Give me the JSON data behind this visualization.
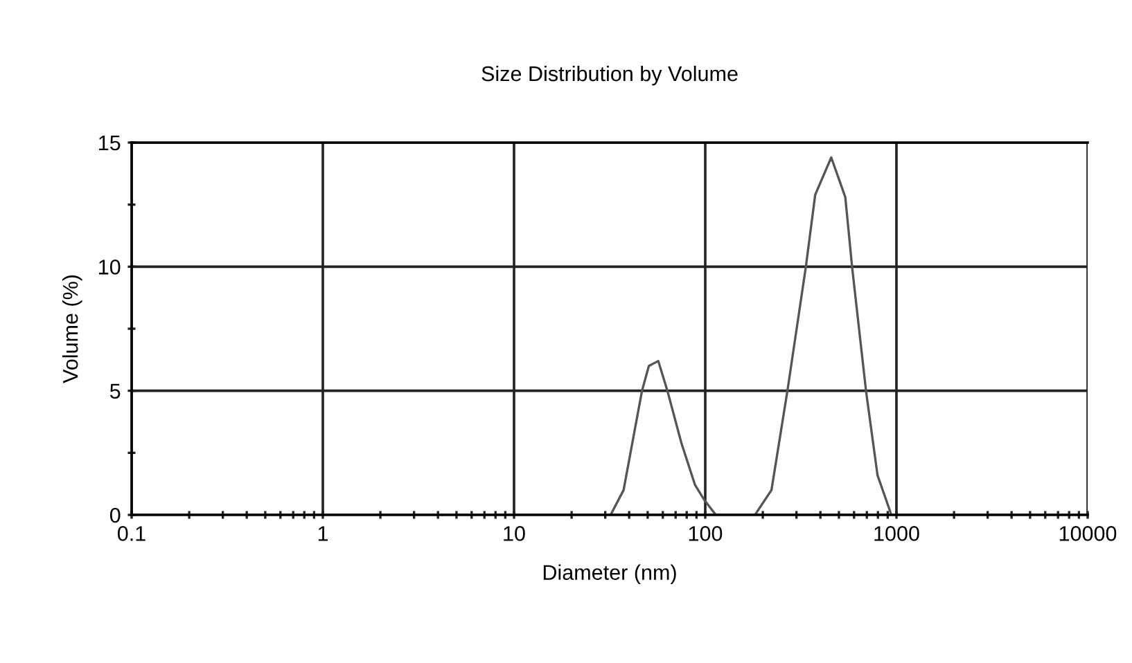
{
  "chart_data": {
    "type": "line",
    "title": "Size Distribution by Volume",
    "xlabel": "Diameter (nm)",
    "ylabel": "Volume (%)",
    "log": "x",
    "xlim": [
      0.1,
      10000
    ],
    "xticks": [
      0.1,
      1,
      10,
      100,
      1000,
      10000
    ],
    "ylim": [
      0,
      15
    ],
    "yticks": [
      0,
      5,
      10,
      15
    ],
    "grid": true,
    "marker": "none",
    "line_style": "solid",
    "series": [
      {
        "color": "#555555",
        "x": [
          32,
          37.4,
          46.7,
          50.7,
          56.8,
          63.4,
          75,
          88.5,
          98.9,
          113.6,
          150,
          182,
          222,
          269,
          336,
          376,
          456,
          540,
          586,
          693,
          796,
          931
        ],
        "values": [
          0,
          1.0,
          5.0,
          6.0,
          6.2,
          5.0,
          2.9,
          1.2,
          0.6,
          0,
          null,
          0,
          1.0,
          5.0,
          10.0,
          12.9,
          14.4,
          12.8,
          10.0,
          5.0,
          1.6,
          0.1
        ]
      }
    ]
  }
}
